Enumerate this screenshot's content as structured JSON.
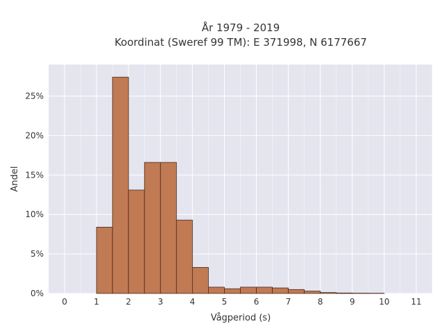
{
  "chart_data": {
    "type": "bar",
    "title": "År 1979 - 2019",
    "subtitle": "Koordinat (Sweref 99 TM): E 371998, N 6177667",
    "xlabel": "Vågperiod (s)",
    "ylabel": "Andel",
    "xlim": [
      -0.5,
      11.5
    ],
    "ylim": [
      0,
      0.29
    ],
    "x_ticks": [
      0,
      1,
      2,
      3,
      4,
      5,
      6,
      7,
      8,
      9,
      10,
      11
    ],
    "y_ticks": [
      0,
      0.05,
      0.1,
      0.15,
      0.2,
      0.25
    ],
    "y_tick_labels": [
      "0%",
      "5%",
      "10%",
      "15%",
      "20%",
      "25%"
    ],
    "bin_width": 0.5,
    "bins": [
      {
        "x0": 1.0,
        "value": 0.084
      },
      {
        "x0": 1.5,
        "value": 0.274
      },
      {
        "x0": 2.0,
        "value": 0.131
      },
      {
        "x0": 2.5,
        "value": 0.166
      },
      {
        "x0": 3.0,
        "value": 0.166
      },
      {
        "x0": 3.5,
        "value": 0.093
      },
      {
        "x0": 4.0,
        "value": 0.033
      },
      {
        "x0": 4.5,
        "value": 0.008
      },
      {
        "x0": 5.0,
        "value": 0.006
      },
      {
        "x0": 5.5,
        "value": 0.008
      },
      {
        "x0": 6.0,
        "value": 0.008
      },
      {
        "x0": 6.5,
        "value": 0.007
      },
      {
        "x0": 7.0,
        "value": 0.005
      },
      {
        "x0": 7.5,
        "value": 0.003
      },
      {
        "x0": 8.0,
        "value": 0.0012
      },
      {
        "x0": 8.5,
        "value": 0.0006
      },
      {
        "x0": 9.0,
        "value": 0.0004
      },
      {
        "x0": 9.5,
        "value": 0.0003
      }
    ],
    "grid": true,
    "colors": {
      "bar_fill": "#c07a54",
      "bar_edge": "#4a2a1a",
      "plot_bg": "#e5e5f0",
      "grid": "#ffffff"
    }
  }
}
